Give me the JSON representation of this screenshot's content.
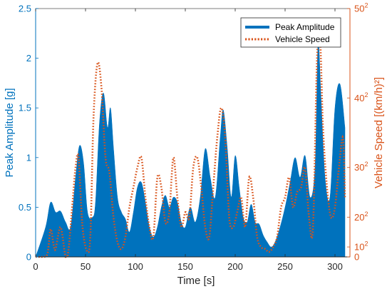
{
  "chart_data": {
    "type": "area",
    "xlabel": "Time [s]",
    "ylabel_left": "Peak Amplitude [g]",
    "ylabel_right": "Vehicle Speed [(km/h)²]",
    "xlim": [
      0,
      315
    ],
    "ylim_left": [
      0,
      2.5
    ],
    "ylim_right": [
      0,
      2500
    ],
    "x_ticks": [
      0,
      50,
      100,
      150,
      200,
      250,
      300
    ],
    "y_left_ticks": [
      0,
      0.5,
      1,
      1.5,
      2,
      2.5
    ],
    "y_right_ticks": [
      {
        "value": 0,
        "base": "0",
        "exp": ""
      },
      {
        "value": 100,
        "base": "10",
        "exp": "2"
      },
      {
        "value": 400,
        "base": "20",
        "exp": "2"
      },
      {
        "value": 900,
        "base": "30",
        "exp": "2"
      },
      {
        "value": 1600,
        "base": "40",
        "exp": "2"
      },
      {
        "value": 2500,
        "base": "50",
        "exp": "2"
      }
    ],
    "legend": {
      "position": "top-right",
      "entries": [
        "Peak Amplitude",
        "Vehicle Speed"
      ]
    },
    "series": [
      {
        "name": "Peak Amplitude",
        "style": "filled-area",
        "axis": "left",
        "color": "#0072BD",
        "x": [
          0,
          10,
          15,
          20,
          25,
          30,
          35,
          40,
          44,
          48,
          52,
          57,
          60,
          64,
          68,
          72,
          75,
          78,
          82,
          86,
          90,
          94,
          98,
          102,
          106,
          110,
          114,
          118,
          122,
          126,
          130,
          134,
          138,
          142,
          146,
          150,
          155,
          160,
          165,
          170,
          175,
          180,
          185,
          188,
          192,
          196,
          200,
          204,
          208,
          212,
          216,
          220,
          224,
          228,
          232,
          236,
          240,
          245,
          250,
          255,
          260,
          265,
          270,
          275,
          280,
          283,
          286,
          290,
          295,
          300,
          305,
          310
        ],
        "y": [
          0.0,
          0.3,
          0.55,
          0.45,
          0.46,
          0.35,
          0.3,
          0.8,
          1.12,
          0.95,
          0.45,
          0.4,
          0.55,
          1.35,
          1.65,
          1.3,
          1.5,
          1.1,
          0.6,
          0.45,
          0.38,
          0.25,
          0.45,
          0.7,
          0.75,
          0.55,
          0.3,
          0.2,
          0.3,
          0.5,
          0.62,
          0.5,
          0.6,
          0.55,
          0.35,
          0.3,
          0.5,
          0.35,
          0.6,
          1.09,
          0.8,
          0.6,
          1.2,
          1.48,
          1.1,
          0.6,
          1.02,
          0.7,
          0.4,
          0.35,
          0.53,
          0.35,
          0.33,
          0.22,
          0.15,
          0.1,
          0.15,
          0.3,
          0.5,
          0.75,
          1.0,
          0.8,
          1.02,
          0.6,
          0.9,
          2.15,
          1.6,
          0.8,
          0.6,
          1.5,
          1.74,
          1.3
        ]
      },
      {
        "name": "Vehicle Speed",
        "style": "dotted-line",
        "axis": "right",
        "color": "#D95319",
        "x": [
          0,
          8,
          12,
          15,
          18,
          20,
          25,
          30,
          33,
          37,
          40,
          43,
          47,
          52,
          55,
          58,
          62,
          66,
          70,
          74,
          78,
          82,
          86,
          90,
          94,
          98,
          102,
          106,
          110,
          114,
          118,
          122,
          126,
          130,
          134,
          138,
          142,
          146,
          150,
          154,
          158,
          162,
          166,
          170,
          174,
          178,
          182,
          186,
          190,
          194,
          198,
          202,
          206,
          210,
          214,
          218,
          222,
          226,
          230,
          234,
          238,
          242,
          246,
          250,
          254,
          258,
          262,
          266,
          270,
          274,
          278,
          282,
          285,
          288,
          292,
          296,
          300,
          304,
          308,
          310
        ],
        "y": [
          0,
          0,
          40,
          280,
          120,
          80,
          300,
          0,
          80,
          550,
          900,
          1000,
          300,
          50,
          250,
          1400,
          1950,
          1700,
          1000,
          850,
          400,
          150,
          80,
          200,
          500,
          700,
          900,
          1000,
          600,
          300,
          200,
          800,
          700,
          350,
          450,
          1000,
          600,
          300,
          450,
          400,
          900,
          1000,
          700,
          300,
          200,
          700,
          1200,
          1500,
          1200,
          400,
          300,
          450,
          600,
          300,
          800,
          600,
          200,
          100,
          80,
          50,
          100,
          200,
          500,
          600,
          800,
          500,
          650,
          700,
          900,
          400,
          300,
          2000,
          2200,
          1300,
          700,
          400,
          500,
          900,
          1200,
          600
        ]
      }
    ]
  }
}
